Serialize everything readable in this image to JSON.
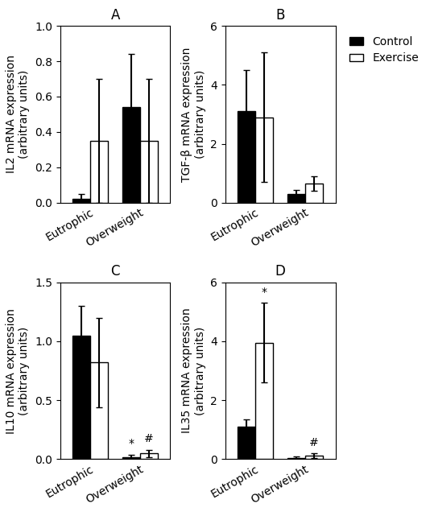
{
  "chart_data": [
    {
      "type": "bar",
      "title": "A",
      "y_label": "IL2 mRNA expression\n(arbitrary units)",
      "categories": [
        "Eutrophic",
        "Overweight"
      ],
      "series": [
        {
          "name": "Control",
          "color": "#000000",
          "values": [
            0.02,
            0.54
          ],
          "errors": [
            0.03,
            0.3
          ]
        },
        {
          "name": "Exercise",
          "color": "#ffffff",
          "values": [
            0.35,
            0.35
          ],
          "errors": [
            0.35,
            0.35
          ]
        }
      ],
      "ylim": [
        0,
        1.0
      ],
      "yticks": [
        {
          "value": 0.0,
          "label": "0.0"
        },
        0.2,
        0.4,
        0.6,
        0.8,
        {
          "value": 1.0,
          "label": "1.0"
        }
      ],
      "annotations": []
    },
    {
      "type": "bar",
      "title": "B",
      "y_label": "TGF-β mRNA expression\n(arbitrary units)",
      "categories": [
        "Eutrophic",
        "Overweight"
      ],
      "series": [
        {
          "name": "Control",
          "color": "#000000",
          "values": [
            3.1,
            0.3
          ],
          "errors": [
            1.4,
            0.12
          ]
        },
        {
          "name": "Exercise",
          "color": "#ffffff",
          "values": [
            2.9,
            0.65
          ],
          "errors": [
            2.2,
            0.25
          ]
        }
      ],
      "ylim": [
        0,
        6
      ],
      "yticks": [
        0,
        2,
        4,
        6
      ],
      "legend": "upper left",
      "annotations": []
    },
    {
      "type": "bar",
      "title": "C",
      "y_label": "IL10 mRNA expression\n(arbitrary units)",
      "categories": [
        "Eutrophic",
        "Overweight"
      ],
      "series": [
        {
          "name": "Control",
          "color": "#000000",
          "values": [
            1.05,
            0.02
          ],
          "errors": [
            0.25,
            0.02
          ]
        },
        {
          "name": "Exercise",
          "color": "#ffffff",
          "values": [
            0.82,
            0.05
          ],
          "errors": [
            0.38,
            0.03
          ]
        }
      ],
      "ylim": [
        0,
        1.5
      ],
      "yticks": [
        {
          "value": 0.0,
          "label": "0.0"
        },
        0.5,
        {
          "value": 1.0,
          "label": "1.0"
        },
        1.5
      ],
      "annotations": [
        {
          "category": "Overweight",
          "series": "Control",
          "text": "*"
        },
        {
          "category": "Overweight",
          "series": "Exercise",
          "text": "#"
        }
      ]
    },
    {
      "type": "bar",
      "title": "D",
      "y_label": "IL35 mRNA expression\n(arbitrary units)",
      "categories": [
        "Eutrophic",
        "Overweight"
      ],
      "series": [
        {
          "name": "Control",
          "color": "#000000",
          "values": [
            1.1,
            0.05
          ],
          "errors": [
            0.25,
            0.05
          ]
        },
        {
          "name": "Exercise",
          "color": "#ffffff",
          "values": [
            3.95,
            0.12
          ],
          "errors": [
            1.35,
            0.08
          ]
        }
      ],
      "ylim": [
        0,
        6
      ],
      "yticks": [
        0,
        2,
        4,
        6
      ],
      "annotations": [
        {
          "category": "Eutrophic",
          "series": "Exercise",
          "text": "*"
        },
        {
          "category": "Overweight",
          "series": "Exercise",
          "text": "#"
        }
      ]
    }
  ]
}
